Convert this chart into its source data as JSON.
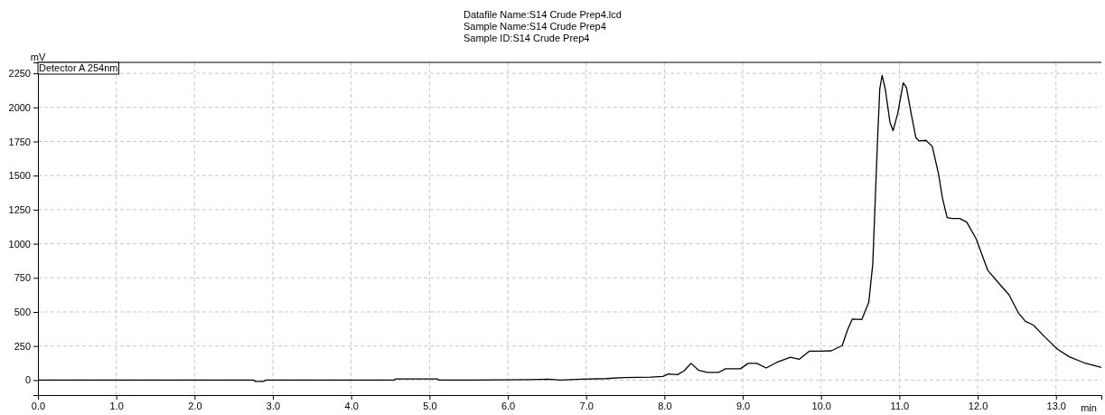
{
  "chart_data": {
    "type": "line",
    "title": "Datafile Name:S14 Crude Prep4.lcd",
    "subtitle": "Sample Name:S14 Crude Prep4",
    "annotations": [
      "Sample ID:S14 Crude Prep4"
    ],
    "xlabel": "min",
    "ylabel": "mV",
    "xlim": [
      0,
      13.58
    ],
    "ylim": [
      -110,
      2330
    ],
    "xticks": [
      {
        "value": 0,
        "label": "0.0"
      },
      {
        "value": 1,
        "label": "1.0"
      },
      {
        "value": 2,
        "label": "2.0"
      },
      {
        "value": 3,
        "label": "3.0"
      },
      {
        "value": 4,
        "label": "4.0"
      },
      {
        "value": 5,
        "label": "5.0"
      },
      {
        "value": 6,
        "label": "6.0"
      },
      {
        "value": 7,
        "label": "7.0"
      },
      {
        "value": 8,
        "label": "8.0"
      },
      {
        "value": 9,
        "label": "9.0"
      },
      {
        "value": 10,
        "label": "10.0"
      },
      {
        "value": 11,
        "label": "11.0"
      },
      {
        "value": 12,
        "label": "12.0"
      },
      {
        "value": 13,
        "label": "13.0"
      }
    ],
    "yticks": [
      0,
      250,
      500,
      750,
      1000,
      1250,
      1500,
      1750,
      2000,
      2250
    ],
    "grid": true,
    "legend": "top left",
    "line_style": "solid",
    "series": [
      {
        "name": "Detector A 254nm",
        "color": "#000000",
        "x": [
          0,
          2.75,
          2.78,
          2.88,
          2.91,
          4.55,
          4.57,
          5.1,
          5.12,
          5.52,
          6.29,
          6.52,
          6.67,
          6.94,
          7.25,
          7.48,
          7.82,
          7.98,
          8.05,
          8.17,
          8.25,
          8.34,
          8.44,
          8.55,
          8.69,
          8.78,
          8.97,
          9.07,
          9.18,
          9.3,
          9.43,
          9.61,
          9.72,
          9.85,
          10.0,
          10.13,
          10.27,
          10.34,
          10.4,
          10.52,
          10.61,
          10.66,
          10.69,
          10.72,
          10.75,
          10.78,
          10.82,
          10.88,
          10.92,
          10.98,
          11.05,
          11.09,
          11.15,
          11.21,
          11.25,
          11.34,
          11.42,
          11.5,
          11.55,
          11.61,
          11.67,
          11.77,
          11.86,
          11.98,
          12.13,
          12.28,
          12.4,
          12.52,
          12.61,
          12.71,
          12.86,
          13.02,
          13.17,
          13.36,
          13.58
        ],
        "values": [
          0,
          0,
          -10,
          -10,
          0,
          0,
          9,
          9,
          0,
          0,
          4,
          7,
          0,
          7,
          11,
          18,
          22,
          27,
          45,
          40,
          67,
          123,
          71,
          56,
          56,
          83,
          83,
          123,
          123,
          89,
          129,
          167,
          152,
          212,
          212,
          215,
          253,
          371,
          448,
          444,
          571,
          848,
          1292,
          1736,
          2136,
          2235,
          2136,
          1891,
          1829,
          1958,
          2180,
          2147,
          1958,
          1780,
          1754,
          1758,
          1714,
          1514,
          1336,
          1192,
          1185,
          1185,
          1159,
          1037,
          804,
          704,
          626,
          493,
          431,
          404,
          315,
          226,
          171,
          127,
          93
        ]
      }
    ]
  }
}
